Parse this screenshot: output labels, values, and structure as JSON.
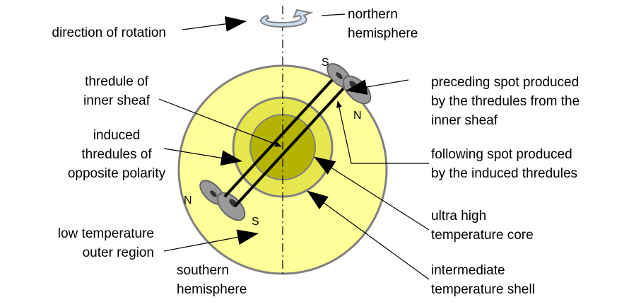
{
  "labels": {
    "direction_of_rotation": [
      "direction of rotation"
    ],
    "northern_hemisphere": [
      "northern",
      "hemisphere"
    ],
    "thredule_of_inner_sheaf": [
      "thredule of",
      "inner sheaf"
    ],
    "induced_thredules": [
      "induced",
      "thredules of",
      "opposite polarity"
    ],
    "low_temperature_outer_region": [
      "low temperature",
      "outer region"
    ],
    "southern_hemisphere": [
      "southern",
      "hemisphere"
    ],
    "preceding_spot": [
      "preceding spot produced",
      "by the thredules from the",
      "inner sheaf"
    ],
    "following_spot": [
      "following spot produced",
      "by the induced thredules"
    ],
    "ultra_high_core": [
      "ultra high",
      "temperature core"
    ],
    "intermediate_shell": [
      "intermediate",
      "temperature shell"
    ]
  },
  "spot_labels": {
    "upper_s": "S",
    "upper_n": "N",
    "lower_n": "N",
    "lower_s": "S"
  }
}
